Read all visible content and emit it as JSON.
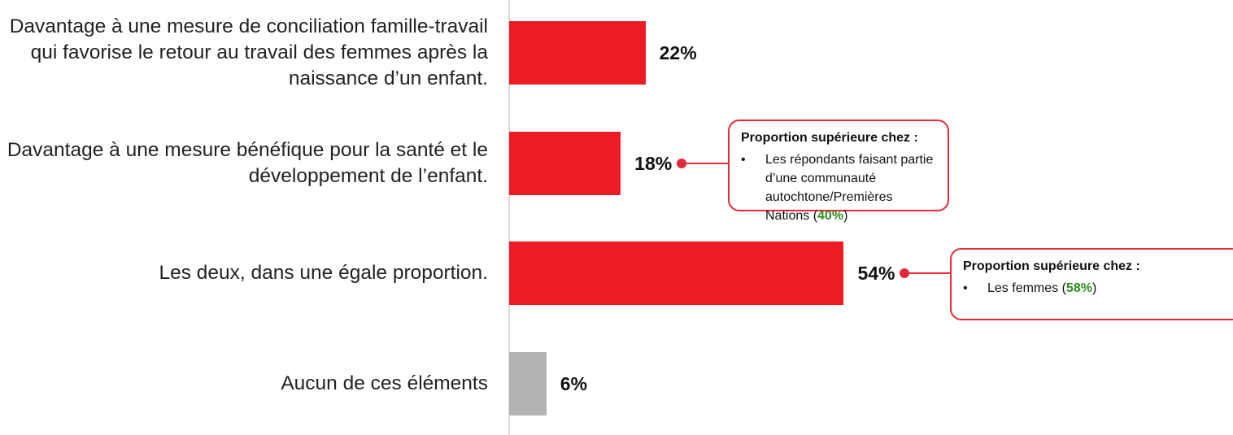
{
  "chart_data": {
    "type": "bar",
    "categories": [
      "Davantage à une mesure de conciliation famille-travail qui favorise le retour au travail des femmes après la naissance d’un enfant.",
      "Davantage à une mesure bénéfique pour la santé et le développement de l’enfant.",
      "Les deux, dans une égale proportion.",
      "Aucun de ces éléments"
    ],
    "values": [
      22,
      18,
      54,
      6
    ],
    "value_labels": [
      "22%",
      "18%",
      "54%",
      "6%"
    ],
    "colors": [
      "#ed1c24",
      "#ed1c24",
      "#ed1c24",
      "#b3b3b3"
    ],
    "annotations": [
      {
        "title": "Proportion supérieure chez :",
        "text": "Les répondants faisant partie d’une communauté autochtone/Premières Nations (",
        "value_label": "40%",
        "end": ")"
      },
      {
        "title": "Proportion supérieure chez :",
        "text": "Les femmes (",
        "value_label": "58%",
        "end": ")"
      }
    ]
  }
}
